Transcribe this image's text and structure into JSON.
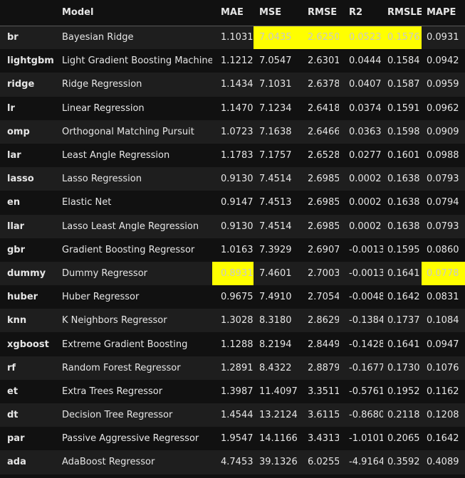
{
  "table": {
    "headers": [
      "",
      "Model",
      "MAE",
      "MSE",
      "RMSE",
      "R2",
      "RMSLE",
      "MAPE"
    ],
    "rows": [
      {
        "id": "br",
        "model": "Bayesian Ridge",
        "mae": "1.1031",
        "mse": "7.0435",
        "rmse": "2.6250",
        "r2": "0.0523",
        "rmsle": "0.1576",
        "mape": "0.0931"
      },
      {
        "id": "lightgbm",
        "model": "Light Gradient Boosting Machine",
        "mae": "1.1212",
        "mse": "7.0547",
        "rmse": "2.6301",
        "r2": "0.0444",
        "rmsle": "0.1584",
        "mape": "0.0942"
      },
      {
        "id": "ridge",
        "model": "Ridge Regression",
        "mae": "1.1434",
        "mse": "7.1031",
        "rmse": "2.6378",
        "r2": "0.0407",
        "rmsle": "0.1587",
        "mape": "0.0959"
      },
      {
        "id": "lr",
        "model": "Linear Regression",
        "mae": "1.1470",
        "mse": "7.1234",
        "rmse": "2.6418",
        "r2": "0.0374",
        "rmsle": "0.1591",
        "mape": "0.0962"
      },
      {
        "id": "omp",
        "model": "Orthogonal Matching Pursuit",
        "mae": "1.0723",
        "mse": "7.1638",
        "rmse": "2.6466",
        "r2": "0.0363",
        "rmsle": "0.1598",
        "mape": "0.0909"
      },
      {
        "id": "lar",
        "model": "Least Angle Regression",
        "mae": "1.1783",
        "mse": "7.1757",
        "rmse": "2.6528",
        "r2": "0.0277",
        "rmsle": "0.1601",
        "mape": "0.0988"
      },
      {
        "id": "lasso",
        "model": "Lasso Regression",
        "mae": "0.9130",
        "mse": "7.4514",
        "rmse": "2.6985",
        "r2": "0.0002",
        "rmsle": "0.1638",
        "mape": "0.0793"
      },
      {
        "id": "en",
        "model": "Elastic Net",
        "mae": "0.9147",
        "mse": "7.4513",
        "rmse": "2.6985",
        "r2": "0.0002",
        "rmsle": "0.1638",
        "mape": "0.0794"
      },
      {
        "id": "llar",
        "model": "Lasso Least Angle Regression",
        "mae": "0.9130",
        "mse": "7.4514",
        "rmse": "2.6985",
        "r2": "0.0002",
        "rmsle": "0.1638",
        "mape": "0.0793"
      },
      {
        "id": "gbr",
        "model": "Gradient Boosting Regressor",
        "mae": "1.0163",
        "mse": "7.3929",
        "rmse": "2.6907",
        "r2": "-0.0013",
        "rmsle": "0.1595",
        "mape": "0.0860"
      },
      {
        "id": "dummy",
        "model": "Dummy Regressor",
        "mae": "0.8931",
        "mse": "7.4601",
        "rmse": "2.7003",
        "r2": "-0.0013",
        "rmsle": "0.1641",
        "mape": "0.0778"
      },
      {
        "id": "huber",
        "model": "Huber Regressor",
        "mae": "0.9675",
        "mse": "7.4910",
        "rmse": "2.7054",
        "r2": "-0.0048",
        "rmsle": "0.1642",
        "mape": "0.0831"
      },
      {
        "id": "knn",
        "model": "K Neighbors Regressor",
        "mae": "1.3028",
        "mse": "8.3180",
        "rmse": "2.8629",
        "r2": "-0.1384",
        "rmsle": "0.1737",
        "mape": "0.1084"
      },
      {
        "id": "xgboost",
        "model": "Extreme Gradient Boosting",
        "mae": "1.1288",
        "mse": "8.2194",
        "rmse": "2.8449",
        "r2": "-0.1428",
        "rmsle": "0.1641",
        "mape": "0.0947"
      },
      {
        "id": "rf",
        "model": "Random Forest Regressor",
        "mae": "1.2891",
        "mse": "8.4322",
        "rmse": "2.8879",
        "r2": "-0.1677",
        "rmsle": "0.1730",
        "mape": "0.1076"
      },
      {
        "id": "et",
        "model": "Extra Trees Regressor",
        "mae": "1.3987",
        "mse": "11.4097",
        "rmse": "3.3511",
        "r2": "-0.5761",
        "rmsle": "0.1952",
        "mape": "0.1162"
      },
      {
        "id": "dt",
        "model": "Decision Tree Regressor",
        "mae": "1.4544",
        "mse": "13.2124",
        "rmse": "3.6115",
        "r2": "-0.8680",
        "rmsle": "0.2118",
        "mape": "0.1208"
      },
      {
        "id": "par",
        "model": "Passive Aggressive Regressor",
        "mae": "1.9547",
        "mse": "14.1166",
        "rmse": "3.4313",
        "r2": "-1.0101",
        "rmsle": "0.2065",
        "mape": "0.1642"
      },
      {
        "id": "ada",
        "model": "AdaBoost Regressor",
        "mae": "4.7453",
        "mse": "39.1326",
        "rmse": "6.0255",
        "r2": "-4.9164",
        "rmsle": "0.3592",
        "mape": "0.4089"
      }
    ],
    "highlighted_cells": [
      {
        "row": 0,
        "col": "mse"
      },
      {
        "row": 0,
        "col": "rmse"
      },
      {
        "row": 0,
        "col": "r2"
      },
      {
        "row": 0,
        "col": "rmsle"
      },
      {
        "row": 10,
        "col": "mae"
      },
      {
        "row": 10,
        "col": "mape"
      }
    ],
    "highlight_color": "#ffff00"
  }
}
